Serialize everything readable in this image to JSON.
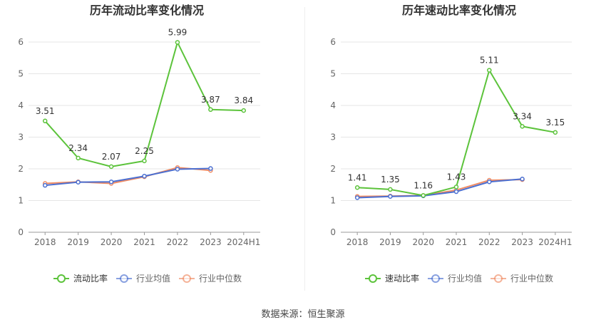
{
  "chart_data": [
    {
      "type": "line",
      "title": "历年流动比率变化情况",
      "categories": [
        "2018",
        "2019",
        "2020",
        "2021",
        "2022",
        "2023",
        "2024H1"
      ],
      "ylim": [
        0,
        6
      ],
      "yticks": [
        0,
        1,
        2,
        3,
        4,
        5,
        6
      ],
      "grid": true,
      "legend_position": "bottom",
      "series": [
        {
          "name": "流动比率",
          "color": "#5cc33b",
          "values": [
            3.51,
            2.34,
            2.07,
            2.25,
            5.99,
            3.87,
            3.84
          ],
          "labels": [
            "3.51",
            "2.34",
            "2.07",
            "2.25",
            "5.99",
            "3.87",
            "3.84"
          ]
        },
        {
          "name": "行业均值",
          "color": "#4b6fd1",
          "values": [
            1.48,
            1.58,
            1.59,
            1.77,
            1.99,
            2.01,
            null
          ]
        },
        {
          "name": "行业中位数",
          "color": "#f08c64",
          "values": [
            1.54,
            1.59,
            1.54,
            1.75,
            2.04,
            1.95,
            null
          ]
        }
      ]
    },
    {
      "type": "line",
      "title": "历年速动比率变化情况",
      "categories": [
        "2018",
        "2019",
        "2020",
        "2021",
        "2022",
        "2023",
        "2024H1"
      ],
      "ylim": [
        0,
        6
      ],
      "yticks": [
        0,
        1,
        2,
        3,
        4,
        5,
        6
      ],
      "grid": true,
      "legend_position": "bottom",
      "series": [
        {
          "name": "速动比率",
          "color": "#5cc33b",
          "values": [
            1.41,
            1.35,
            1.16,
            1.43,
            5.11,
            3.34,
            3.15
          ],
          "labels": [
            "1.41",
            "1.35",
            "1.16",
            "1.43",
            "5.11",
            "3.34",
            "3.15"
          ]
        },
        {
          "name": "行业均值",
          "color": "#4b6fd1",
          "values": [
            1.09,
            1.13,
            1.15,
            1.28,
            1.59,
            1.68,
            null
          ]
        },
        {
          "name": "行业中位数",
          "color": "#f08c64",
          "values": [
            1.13,
            1.14,
            1.16,
            1.33,
            1.64,
            1.66,
            null
          ]
        }
      ]
    }
  ],
  "footer": {
    "source": "数据来源：恒生聚源"
  }
}
